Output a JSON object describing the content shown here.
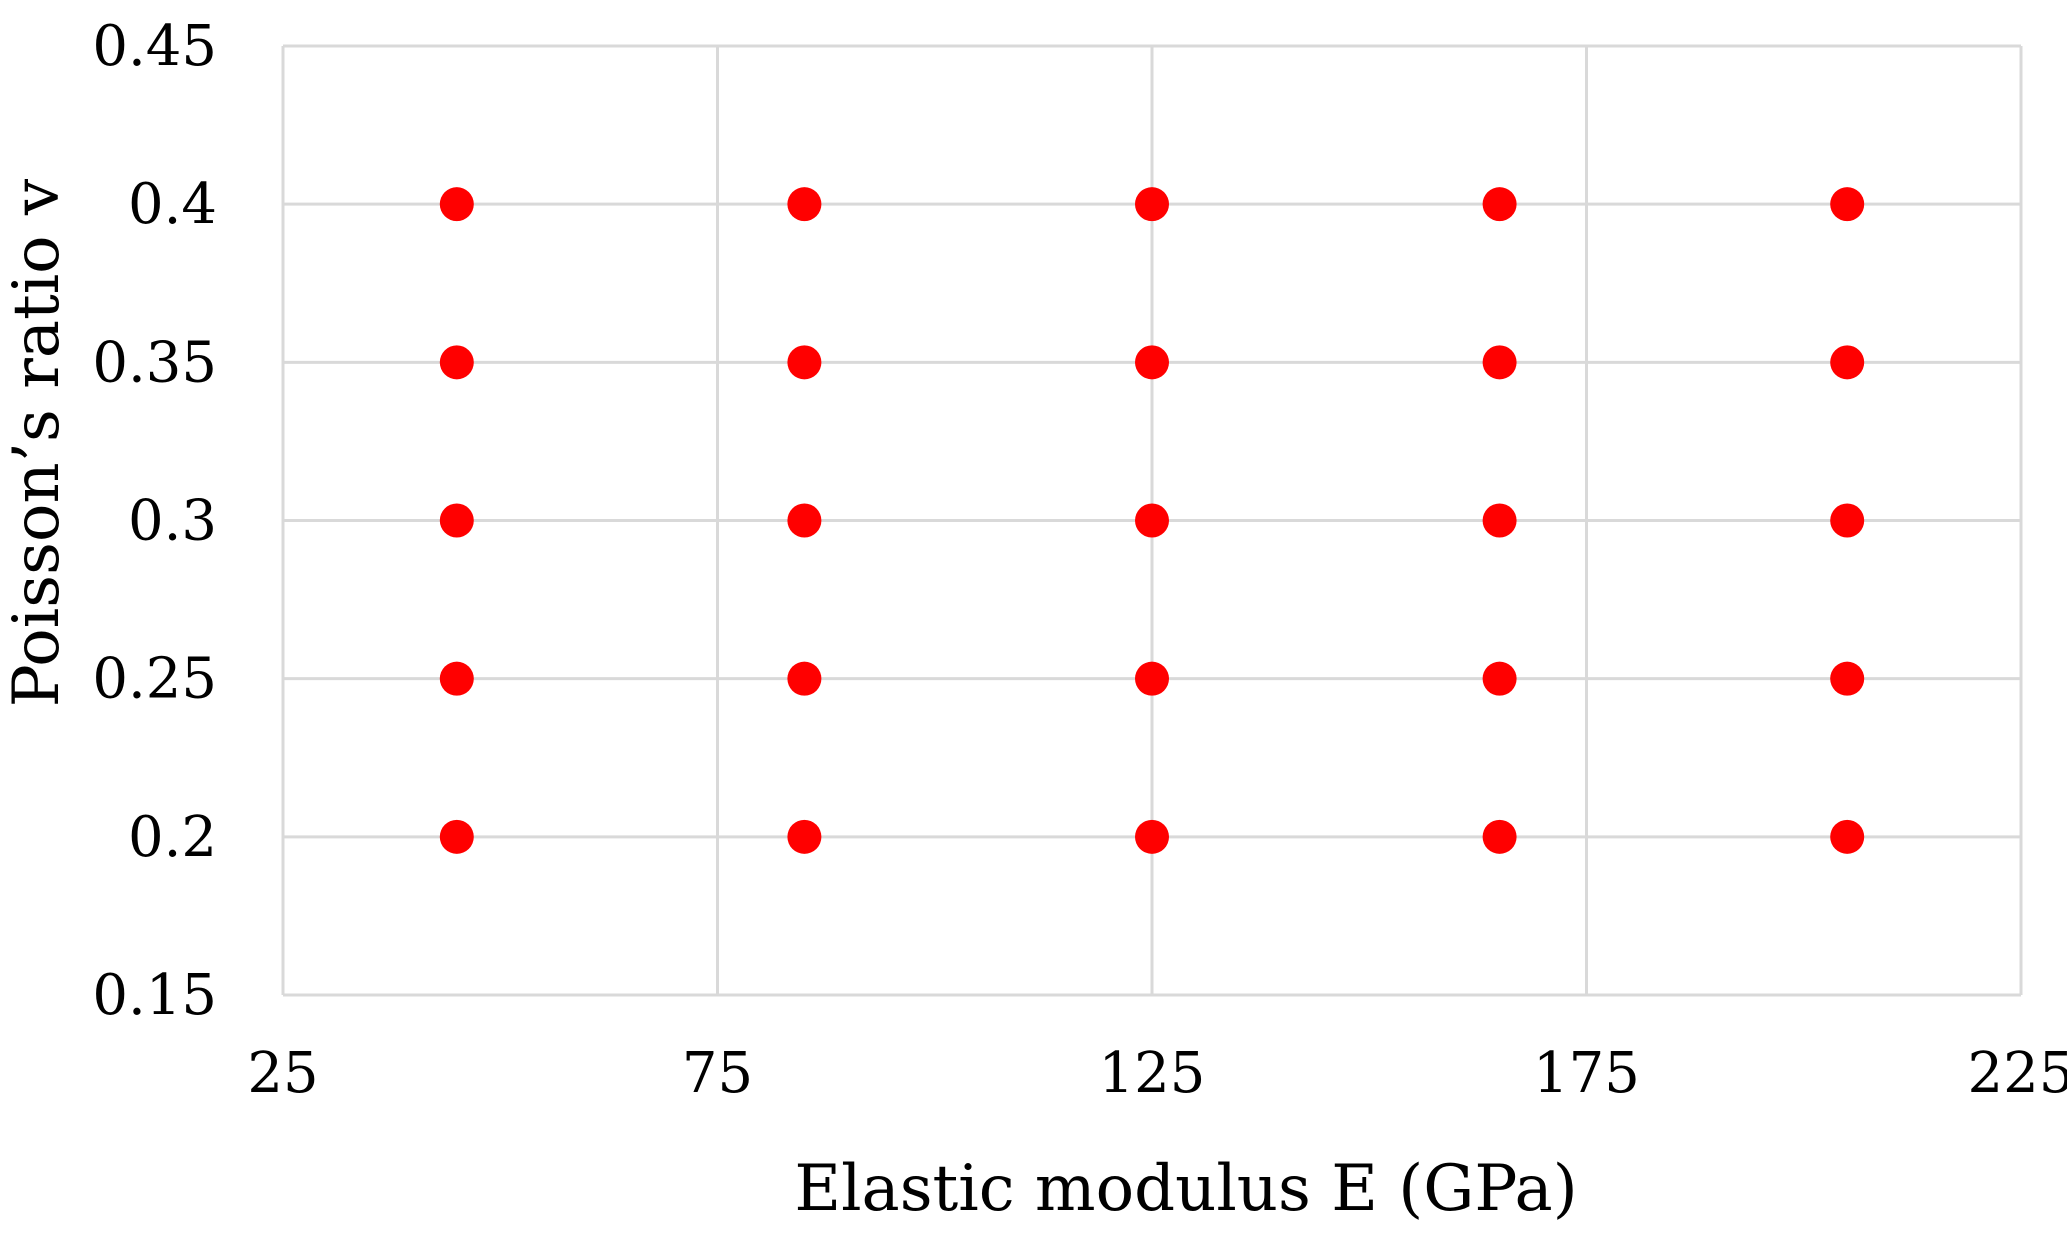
{
  "chart_data": {
    "type": "scatter",
    "title": "",
    "xlabel": "Elastic modulus E (GPa)",
    "ylabel": "Poisson’s ratio v",
    "xlim": [
      25,
      225
    ],
    "ylim": [
      0.15,
      0.45
    ],
    "xticks": [
      25,
      75,
      125,
      175,
      225
    ],
    "yticks": [
      0.15,
      0.2,
      0.25,
      0.3,
      0.35,
      0.4,
      0.45
    ],
    "xtick_labels": [
      "25",
      "75",
      "125",
      "175",
      "225"
    ],
    "ytick_labels": [
      "0.15",
      "0.2",
      "0.25",
      "0.3",
      "0.35",
      "0.4",
      "0.45"
    ],
    "grid": true,
    "legend": "none",
    "marker_color": "#ff0000",
    "grid_color": "#d9d9d9",
    "series": [
      {
        "points": [
          {
            "x": 45,
            "y": 0.4
          },
          {
            "x": 85,
            "y": 0.4
          },
          {
            "x": 125,
            "y": 0.4
          },
          {
            "x": 165,
            "y": 0.4
          },
          {
            "x": 205,
            "y": 0.4
          },
          {
            "x": 45,
            "y": 0.35
          },
          {
            "x": 85,
            "y": 0.35
          },
          {
            "x": 125,
            "y": 0.35
          },
          {
            "x": 165,
            "y": 0.35
          },
          {
            "x": 205,
            "y": 0.35
          },
          {
            "x": 45,
            "y": 0.3
          },
          {
            "x": 85,
            "y": 0.3
          },
          {
            "x": 125,
            "y": 0.3
          },
          {
            "x": 165,
            "y": 0.3
          },
          {
            "x": 205,
            "y": 0.3
          },
          {
            "x": 45,
            "y": 0.25
          },
          {
            "x": 85,
            "y": 0.25
          },
          {
            "x": 125,
            "y": 0.25
          },
          {
            "x": 165,
            "y": 0.25
          },
          {
            "x": 205,
            "y": 0.25
          },
          {
            "x": 45,
            "y": 0.2
          },
          {
            "x": 85,
            "y": 0.2
          },
          {
            "x": 125,
            "y": 0.2
          },
          {
            "x": 165,
            "y": 0.2
          },
          {
            "x": 205,
            "y": 0.2
          }
        ]
      }
    ]
  }
}
